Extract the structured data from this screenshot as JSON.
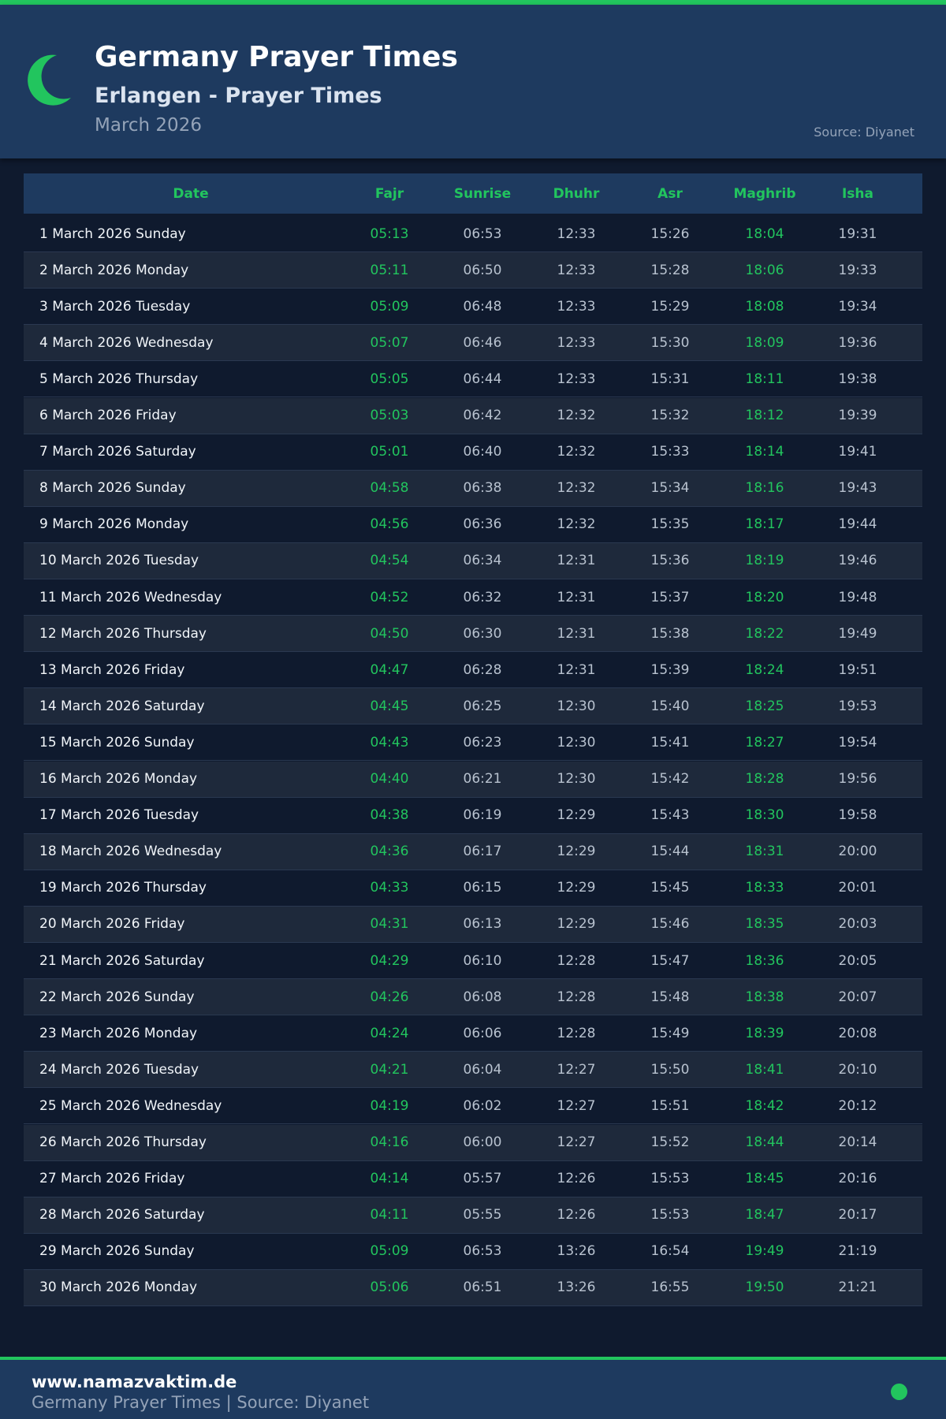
{
  "header": {
    "title": "Germany Prayer Times",
    "subtitle": "Erlangen - Prayer Times",
    "month": "March 2026",
    "source": "Source: Diyanet",
    "icon": "crescent-moon-icon"
  },
  "colors": {
    "accent": "#22c55e",
    "header_bg": "#1e3a5f",
    "page_bg": "#0f1a2e"
  },
  "table": {
    "columns": [
      "Date",
      "Fajr",
      "Sunrise",
      "Dhuhr",
      "Asr",
      "Maghrib",
      "Isha"
    ],
    "rows": [
      [
        "1 March 2026 Sunday",
        "05:13",
        "06:53",
        "12:33",
        "15:26",
        "18:04",
        "19:31"
      ],
      [
        "2 March 2026 Monday",
        "05:11",
        "06:50",
        "12:33",
        "15:28",
        "18:06",
        "19:33"
      ],
      [
        "3 March 2026 Tuesday",
        "05:09",
        "06:48",
        "12:33",
        "15:29",
        "18:08",
        "19:34"
      ],
      [
        "4 March 2026 Wednesday",
        "05:07",
        "06:46",
        "12:33",
        "15:30",
        "18:09",
        "19:36"
      ],
      [
        "5 March 2026 Thursday",
        "05:05",
        "06:44",
        "12:33",
        "15:31",
        "18:11",
        "19:38"
      ],
      [
        "6 March 2026 Friday",
        "05:03",
        "06:42",
        "12:32",
        "15:32",
        "18:12",
        "19:39"
      ],
      [
        "7 March 2026 Saturday",
        "05:01",
        "06:40",
        "12:32",
        "15:33",
        "18:14",
        "19:41"
      ],
      [
        "8 March 2026 Sunday",
        "04:58",
        "06:38",
        "12:32",
        "15:34",
        "18:16",
        "19:43"
      ],
      [
        "9 March 2026 Monday",
        "04:56",
        "06:36",
        "12:32",
        "15:35",
        "18:17",
        "19:44"
      ],
      [
        "10 March 2026 Tuesday",
        "04:54",
        "06:34",
        "12:31",
        "15:36",
        "18:19",
        "19:46"
      ],
      [
        "11 March 2026 Wednesday",
        "04:52",
        "06:32",
        "12:31",
        "15:37",
        "18:20",
        "19:48"
      ],
      [
        "12 March 2026 Thursday",
        "04:50",
        "06:30",
        "12:31",
        "15:38",
        "18:22",
        "19:49"
      ],
      [
        "13 March 2026 Friday",
        "04:47",
        "06:28",
        "12:31",
        "15:39",
        "18:24",
        "19:51"
      ],
      [
        "14 March 2026 Saturday",
        "04:45",
        "06:25",
        "12:30",
        "15:40",
        "18:25",
        "19:53"
      ],
      [
        "15 March 2026 Sunday",
        "04:43",
        "06:23",
        "12:30",
        "15:41",
        "18:27",
        "19:54"
      ],
      [
        "16 March 2026 Monday",
        "04:40",
        "06:21",
        "12:30",
        "15:42",
        "18:28",
        "19:56"
      ],
      [
        "17 March 2026 Tuesday",
        "04:38",
        "06:19",
        "12:29",
        "15:43",
        "18:30",
        "19:58"
      ],
      [
        "18 March 2026 Wednesday",
        "04:36",
        "06:17",
        "12:29",
        "15:44",
        "18:31",
        "20:00"
      ],
      [
        "19 March 2026 Thursday",
        "04:33",
        "06:15",
        "12:29",
        "15:45",
        "18:33",
        "20:01"
      ],
      [
        "20 March 2026 Friday",
        "04:31",
        "06:13",
        "12:29",
        "15:46",
        "18:35",
        "20:03"
      ],
      [
        "21 March 2026 Saturday",
        "04:29",
        "06:10",
        "12:28",
        "15:47",
        "18:36",
        "20:05"
      ],
      [
        "22 March 2026 Sunday",
        "04:26",
        "06:08",
        "12:28",
        "15:48",
        "18:38",
        "20:07"
      ],
      [
        "23 March 2026 Monday",
        "04:24",
        "06:06",
        "12:28",
        "15:49",
        "18:39",
        "20:08"
      ],
      [
        "24 March 2026 Tuesday",
        "04:21",
        "06:04",
        "12:27",
        "15:50",
        "18:41",
        "20:10"
      ],
      [
        "25 March 2026 Wednesday",
        "04:19",
        "06:02",
        "12:27",
        "15:51",
        "18:42",
        "20:12"
      ],
      [
        "26 March 2026 Thursday",
        "04:16",
        "06:00",
        "12:27",
        "15:52",
        "18:44",
        "20:14"
      ],
      [
        "27 March 2026 Friday",
        "04:14",
        "05:57",
        "12:26",
        "15:53",
        "18:45",
        "20:16"
      ],
      [
        "28 March 2026 Saturday",
        "04:11",
        "05:55",
        "12:26",
        "15:53",
        "18:47",
        "20:17"
      ],
      [
        "29 March 2026 Sunday",
        "05:09",
        "06:53",
        "13:26",
        "16:54",
        "19:49",
        "21:19"
      ],
      [
        "30 March 2026 Monday",
        "05:06",
        "06:51",
        "13:26",
        "16:55",
        "19:50",
        "21:21"
      ]
    ]
  },
  "footer": {
    "site": "www.namazvaktim.de",
    "text": "Germany Prayer Times | Source: Diyanet",
    "icon": "status-dot-icon"
  }
}
